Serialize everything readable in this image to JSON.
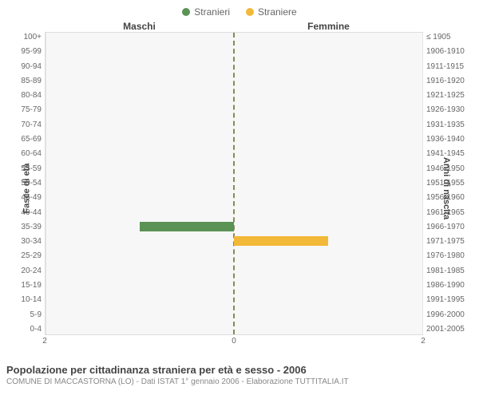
{
  "legend": {
    "male": {
      "label": "Stranieri",
      "color": "#5a9355"
    },
    "female": {
      "label": "Straniere",
      "color": "#f2b838"
    }
  },
  "columns": {
    "left": "Maschi",
    "right": "Femmine"
  },
  "axes": {
    "left_label": "Fasce di età",
    "right_label": "Anni di nascita",
    "x_max": 2,
    "x_ticks": [
      2,
      0,
      2
    ]
  },
  "colors": {
    "background": "#f7f7f7",
    "grid": "#e5e5e5",
    "center_line": "#888855",
    "border": "#dddddd"
  },
  "rows": [
    {
      "age": "100+",
      "birth": "≤ 1905",
      "male": 0,
      "female": 0
    },
    {
      "age": "95-99",
      "birth": "1906-1910",
      "male": 0,
      "female": 0
    },
    {
      "age": "90-94",
      "birth": "1911-1915",
      "male": 0,
      "female": 0
    },
    {
      "age": "85-89",
      "birth": "1916-1920",
      "male": 0,
      "female": 0
    },
    {
      "age": "80-84",
      "birth": "1921-1925",
      "male": 0,
      "female": 0
    },
    {
      "age": "75-79",
      "birth": "1926-1930",
      "male": 0,
      "female": 0
    },
    {
      "age": "70-74",
      "birth": "1931-1935",
      "male": 0,
      "female": 0
    },
    {
      "age": "65-69",
      "birth": "1936-1940",
      "male": 0,
      "female": 0
    },
    {
      "age": "60-64",
      "birth": "1941-1945",
      "male": 0,
      "female": 0
    },
    {
      "age": "55-59",
      "birth": "1946-1950",
      "male": 0,
      "female": 0
    },
    {
      "age": "50-54",
      "birth": "1951-1955",
      "male": 0,
      "female": 0
    },
    {
      "age": "45-49",
      "birth": "1956-1960",
      "male": 0,
      "female": 0
    },
    {
      "age": "40-44",
      "birth": "1961-1965",
      "male": 0,
      "female": 0
    },
    {
      "age": "35-39",
      "birth": "1966-1970",
      "male": 1,
      "female": 0
    },
    {
      "age": "30-34",
      "birth": "1971-1975",
      "male": 0,
      "female": 1
    },
    {
      "age": "25-29",
      "birth": "1976-1980",
      "male": 0,
      "female": 0
    },
    {
      "age": "20-24",
      "birth": "1981-1985",
      "male": 0,
      "female": 0
    },
    {
      "age": "15-19",
      "birth": "1986-1990",
      "male": 0,
      "female": 0
    },
    {
      "age": "10-14",
      "birth": "1991-1995",
      "male": 0,
      "female": 0
    },
    {
      "age": "5-9",
      "birth": "1996-2000",
      "male": 0,
      "female": 0
    },
    {
      "age": "0-4",
      "birth": "2001-2005",
      "male": 0,
      "female": 0
    }
  ],
  "footer": {
    "title": "Popolazione per cittadinanza straniera per età e sesso - 2006",
    "subtitle": "COMUNE DI MACCASTORNA (LO) - Dati ISTAT 1° gennaio 2006 - Elaborazione TUTTITALIA.IT"
  }
}
